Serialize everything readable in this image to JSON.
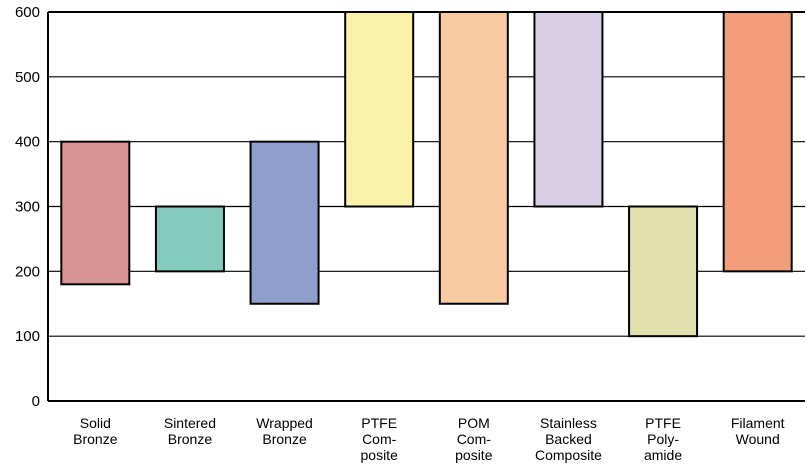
{
  "chart_data": {
    "type": "bar",
    "subtype": "floating-range",
    "categories": [
      [
        "Solid",
        "Bronze"
      ],
      [
        "Sintered",
        "Bronze"
      ],
      [
        "Wrapped",
        "Bronze"
      ],
      [
        "PTFE",
        "Com-",
        "posite"
      ],
      [
        "POM",
        "Com-",
        "posite"
      ],
      [
        "Stainless",
        "Backed",
        "Composite"
      ],
      [
        "PTFE",
        "Poly-",
        "amide"
      ],
      [
        "Filament",
        "Wound"
      ]
    ],
    "ranges": [
      [
        180,
        400
      ],
      [
        200,
        300
      ],
      [
        150,
        400
      ],
      [
        300,
        600
      ],
      [
        150,
        600
      ],
      [
        300,
        600
      ],
      [
        100,
        300
      ],
      [
        200,
        600
      ]
    ],
    "colors": [
      "#d99593",
      "#84cbbd",
      "#8e9fcb",
      "#fbf2a9",
      "#f8cba2",
      "#d9d0e6",
      "#e2dfae",
      "#f29d7a"
    ],
    "yticks": [
      0,
      100,
      200,
      300,
      400,
      500,
      600
    ],
    "ylim": [
      0,
      600
    ],
    "grid": true,
    "title": "",
    "xlabel": "",
    "ylabel": ""
  }
}
